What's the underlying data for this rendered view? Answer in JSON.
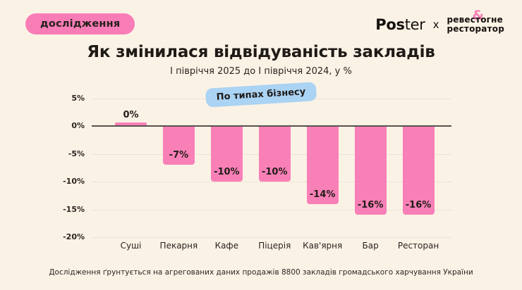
{
  "badge": {
    "label": "дослідження"
  },
  "logos": {
    "poster_bold": "Pos",
    "poster_light": "ter",
    "separator": "x",
    "partner_line1_pre": "реве",
    "partner_amp": "&",
    "partner_line1_post": "стогне",
    "partner_line2": "ресторатор"
  },
  "header": {
    "title": "Як змінилася відвідуваність закладів",
    "subtitle": "І півріччя 2025 до І півріччя 2024, у %"
  },
  "chart_data": {
    "type": "bar",
    "title": "Як змінилася відвідуваність закладів",
    "subtitle": "І півріччя 2025 до І півріччя 2024, у %",
    "chip_label": "По типах бізнесу",
    "categories": [
      "Суші",
      "Пекарня",
      "Кафе",
      "Піцерія",
      "Кав'ярня",
      "Бар",
      "Ресторан"
    ],
    "values": [
      0,
      -7,
      -10,
      -10,
      -14,
      -16,
      -16
    ],
    "value_labels": [
      "0%",
      "-7%",
      "-10%",
      "-10%",
      "-14%",
      "-16%",
      "-16%"
    ],
    "y_ticks": [
      "5%",
      "0%",
      "-5%",
      "-10%",
      "-15%",
      "-20%"
    ],
    "y_tick_values": [
      5,
      0,
      -5,
      -10,
      -15,
      -20
    ],
    "ylim": [
      -20,
      5
    ],
    "xlabel": "",
    "ylabel": "",
    "grid": "horizontal",
    "bar_color": "#F880B7",
    "axis_color": "#56524C",
    "background_color": "#FBF2E6",
    "accent_pink": "#F87DB6",
    "accent_blue": "#ABD3F3"
  },
  "footer": {
    "note": "Дослідження ґрунтується на агрегованих даних продажів 8800 закладів громадського харчування України"
  }
}
